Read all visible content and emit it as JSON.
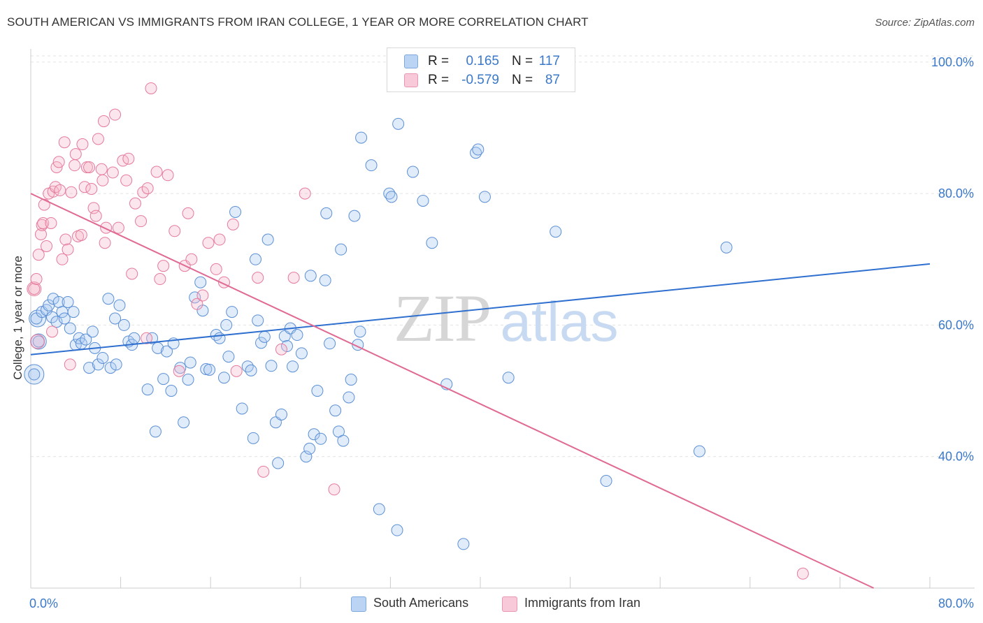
{
  "title": "SOUTH AMERICAN VS IMMIGRANTS FROM IRAN COLLEGE, 1 YEAR OR MORE CORRELATION CHART",
  "source": "Source: ZipAtlas.com",
  "watermark": {
    "zip": "ZIP",
    "atlas": "atlas"
  },
  "legend": {
    "rows": [
      {
        "r_label": "R =",
        "r_value": "0.165",
        "n_label": "N =",
        "n_value": "117",
        "color": "#a9c8f0"
      },
      {
        "r_label": "R =",
        "r_value": "-0.579",
        "n_label": "N =",
        "n_value": "87",
        "color": "#f5b8cc"
      }
    ]
  },
  "bottom_legend": [
    {
      "label": "South Americans",
      "color": "#a9c8f0"
    },
    {
      "label": "Immigrants from Iran",
      "color": "#f5b8cc"
    }
  ],
  "chart_data": {
    "type": "scatter",
    "title": "SOUTH AMERICAN VS IMMIGRANTS FROM IRAN COLLEGE, 1 YEAR OR MORE CORRELATION CHART",
    "xlabel": "",
    "ylabel": "College, 1 year or more",
    "xlim": [
      0,
      80
    ],
    "ylim": [
      20,
      102
    ],
    "x_tick_labels": [
      "0.0%",
      "80.0%"
    ],
    "y_tick_labels": [
      "40.0%",
      "60.0%",
      "80.0%",
      "100.0%"
    ],
    "y_ticks": [
      40,
      60,
      80,
      100
    ],
    "x_minor_ticks": [
      0,
      8,
      16,
      24,
      32,
      40,
      48,
      56,
      64,
      72,
      80
    ],
    "grid": true,
    "colors": {
      "blue_fill": "#a9c8f0",
      "blue_stroke": "#5b8fd4",
      "blue_line": "#2f6fcf",
      "pink_fill": "#f5b8cc",
      "pink_stroke": "#e57a9c",
      "pink_line": "#e06a94",
      "axis_text": "#3a78c9"
    },
    "series": [
      {
        "name": "South Americans",
        "trendline": {
          "x": [
            0,
            80
          ],
          "y": [
            55.5,
            69.3
          ]
        },
        "points": [
          [
            0.3,
            52.5
          ],
          [
            0.5,
            61
          ],
          [
            0.7,
            57.5
          ],
          [
            1,
            62
          ],
          [
            1.4,
            62.3
          ],
          [
            1.6,
            63
          ],
          [
            1.9,
            61.2
          ],
          [
            2,
            64
          ],
          [
            2.3,
            60.5
          ],
          [
            2.5,
            63.5
          ],
          [
            2.8,
            62
          ],
          [
            3,
            61
          ],
          [
            3.3,
            63.5
          ],
          [
            3.5,
            59.5
          ],
          [
            3.8,
            62
          ],
          [
            4,
            57
          ],
          [
            4.3,
            58
          ],
          [
            4.5,
            57.2
          ],
          [
            4.9,
            57.8
          ],
          [
            5.2,
            53.5
          ],
          [
            5.5,
            59
          ],
          [
            5.7,
            56.5
          ],
          [
            6,
            54
          ],
          [
            6.4,
            55
          ],
          [
            6.9,
            64
          ],
          [
            7.1,
            53.5
          ],
          [
            7.5,
            61
          ],
          [
            7.6,
            54
          ],
          [
            7.9,
            63
          ],
          [
            8.3,
            60
          ],
          [
            8.7,
            57.5
          ],
          [
            9,
            57
          ],
          [
            9.2,
            58
          ],
          [
            10.4,
            50.2
          ],
          [
            10.8,
            58
          ],
          [
            11.1,
            43.8
          ],
          [
            11.3,
            56.5
          ],
          [
            11.8,
            51.8
          ],
          [
            12.1,
            56
          ],
          [
            12.5,
            50
          ],
          [
            12.7,
            57.2
          ],
          [
            13.3,
            53.5
          ],
          [
            13.6,
            45.2
          ],
          [
            14,
            51.7
          ],
          [
            14.2,
            54.3
          ],
          [
            14.6,
            64.2
          ],
          [
            15.1,
            66.5
          ],
          [
            15.3,
            62.2
          ],
          [
            15.6,
            53.3
          ],
          [
            15.9,
            53.2
          ],
          [
            16.5,
            58.5
          ],
          [
            16.8,
            58
          ],
          [
            17.2,
            52
          ],
          [
            17.4,
            60
          ],
          [
            17.6,
            55.2
          ],
          [
            17.9,
            62
          ],
          [
            18.2,
            77.2
          ],
          [
            18.8,
            47.3
          ],
          [
            19.3,
            53.7
          ],
          [
            19.6,
            53.1
          ],
          [
            19.8,
            42.8
          ],
          [
            20,
            70
          ],
          [
            20.2,
            60.7
          ],
          [
            20.5,
            57.3
          ],
          [
            20.8,
            58.2
          ],
          [
            21.1,
            73
          ],
          [
            21.4,
            53.8
          ],
          [
            21.8,
            45.2
          ],
          [
            22,
            39
          ],
          [
            22.3,
            46.4
          ],
          [
            22.6,
            58.3
          ],
          [
            22.8,
            56.8
          ],
          [
            23.1,
            59.5
          ],
          [
            23.3,
            53.7
          ],
          [
            23.7,
            58.5
          ],
          [
            24.1,
            55.7
          ],
          [
            24.5,
            40
          ],
          [
            24.8,
            41.2
          ],
          [
            24.9,
            67.5
          ],
          [
            25.2,
            43.4
          ],
          [
            25.5,
            50
          ],
          [
            25.8,
            42.7
          ],
          [
            26.2,
            66.8
          ],
          [
            26.3,
            77
          ],
          [
            26.6,
            57.2
          ],
          [
            27.1,
            47
          ],
          [
            27.4,
            43.8
          ],
          [
            27.6,
            71.5
          ],
          [
            27.8,
            42.4
          ],
          [
            28.3,
            49
          ],
          [
            28.5,
            51.7
          ],
          [
            28.8,
            76.6
          ],
          [
            29.1,
            57
          ],
          [
            29.3,
            59
          ],
          [
            29.4,
            88.5
          ],
          [
            30.3,
            84.3
          ],
          [
            31,
            32
          ],
          [
            31.9,
            80
          ],
          [
            32.1,
            79.5
          ],
          [
            32.6,
            28.8
          ],
          [
            32.7,
            90.6
          ],
          [
            34,
            83.3
          ],
          [
            34.3,
            98.9
          ],
          [
            34.9,
            78.9
          ],
          [
            35.7,
            72.5
          ],
          [
            37,
            51
          ],
          [
            38.5,
            26.7
          ],
          [
            39.6,
            86.2
          ],
          [
            39.8,
            86.7
          ],
          [
            40.4,
            79.5
          ],
          [
            42.5,
            52
          ],
          [
            46.7,
            74.2
          ],
          [
            51.2,
            36.3
          ],
          [
            59.5,
            40.8
          ],
          [
            61.9,
            71.8
          ]
        ],
        "radius": 8,
        "large_points": [
          [
            0.3,
            52.5,
            14
          ],
          [
            0.6,
            61,
            12
          ],
          [
            0.7,
            57.5,
            11
          ]
        ]
      },
      {
        "name": "Immigrants from Iran",
        "trendline": {
          "x": [
            0,
            75
          ],
          "y": [
            80,
            0
          ]
        },
        "points": [
          [
            0.3,
            65.5
          ],
          [
            0.5,
            67
          ],
          [
            0.7,
            70.7
          ],
          [
            0.9,
            73.8
          ],
          [
            1,
            75.2
          ],
          [
            1.1,
            75.5
          ],
          [
            1.2,
            78.3
          ],
          [
            1.4,
            72
          ],
          [
            1.6,
            80
          ],
          [
            1.8,
            75.5
          ],
          [
            1.9,
            59
          ],
          [
            2,
            80.3
          ],
          [
            2.2,
            81
          ],
          [
            2.3,
            84
          ],
          [
            2.5,
            84.8
          ],
          [
            2.6,
            80.5
          ],
          [
            2.8,
            70
          ],
          [
            3,
            87.8
          ],
          [
            3.1,
            73
          ],
          [
            3.3,
            71.5
          ],
          [
            3.5,
            54
          ],
          [
            3.6,
            80.2
          ],
          [
            3.9,
            84.3
          ],
          [
            4,
            86
          ],
          [
            4.2,
            73.5
          ],
          [
            4.5,
            73.7
          ],
          [
            4.6,
            87.5
          ],
          [
            4.8,
            81
          ],
          [
            5,
            84
          ],
          [
            5.2,
            84
          ],
          [
            5.4,
            80.7
          ],
          [
            5.6,
            77.8
          ],
          [
            5.8,
            76.6
          ],
          [
            6,
            88.3
          ],
          [
            6.3,
            83.7
          ],
          [
            6.4,
            82
          ],
          [
            6.5,
            91
          ],
          [
            6.6,
            72.5
          ],
          [
            6.7,
            74.8
          ],
          [
            7.3,
            83.2
          ],
          [
            7.5,
            92
          ],
          [
            7.8,
            74.8
          ],
          [
            8.2,
            85
          ],
          [
            8.5,
            82
          ],
          [
            8.7,
            85.3
          ],
          [
            9,
            67.8
          ],
          [
            9.3,
            78.5
          ],
          [
            9.8,
            75.8
          ],
          [
            10,
            80.2
          ],
          [
            10.3,
            58
          ],
          [
            10.4,
            80.8
          ],
          [
            10.7,
            96
          ],
          [
            11.2,
            83.3
          ],
          [
            11.5,
            67
          ],
          [
            11.8,
            69
          ],
          [
            12.2,
            82.8
          ],
          [
            12.8,
            74.3
          ],
          [
            13.2,
            53
          ],
          [
            13.7,
            69
          ],
          [
            14,
            77
          ],
          [
            14.3,
            70
          ],
          [
            14.8,
            63.2
          ],
          [
            15.3,
            64.5
          ],
          [
            15.8,
            72.5
          ],
          [
            16.5,
            68.5
          ],
          [
            16.8,
            73
          ],
          [
            17.2,
            66.5
          ],
          [
            18,
            75.3
          ],
          [
            18.3,
            53
          ],
          [
            20.2,
            67.2
          ],
          [
            20.7,
            37.7
          ],
          [
            22.3,
            56.3
          ],
          [
            23.4,
            67.2
          ],
          [
            24.4,
            80
          ],
          [
            27,
            35
          ],
          [
            68.7,
            22.2
          ]
        ],
        "radius": 8,
        "large_points": [
          [
            0.3,
            65.5,
            10
          ],
          [
            0.6,
            57.5,
            10
          ]
        ]
      }
    ]
  }
}
